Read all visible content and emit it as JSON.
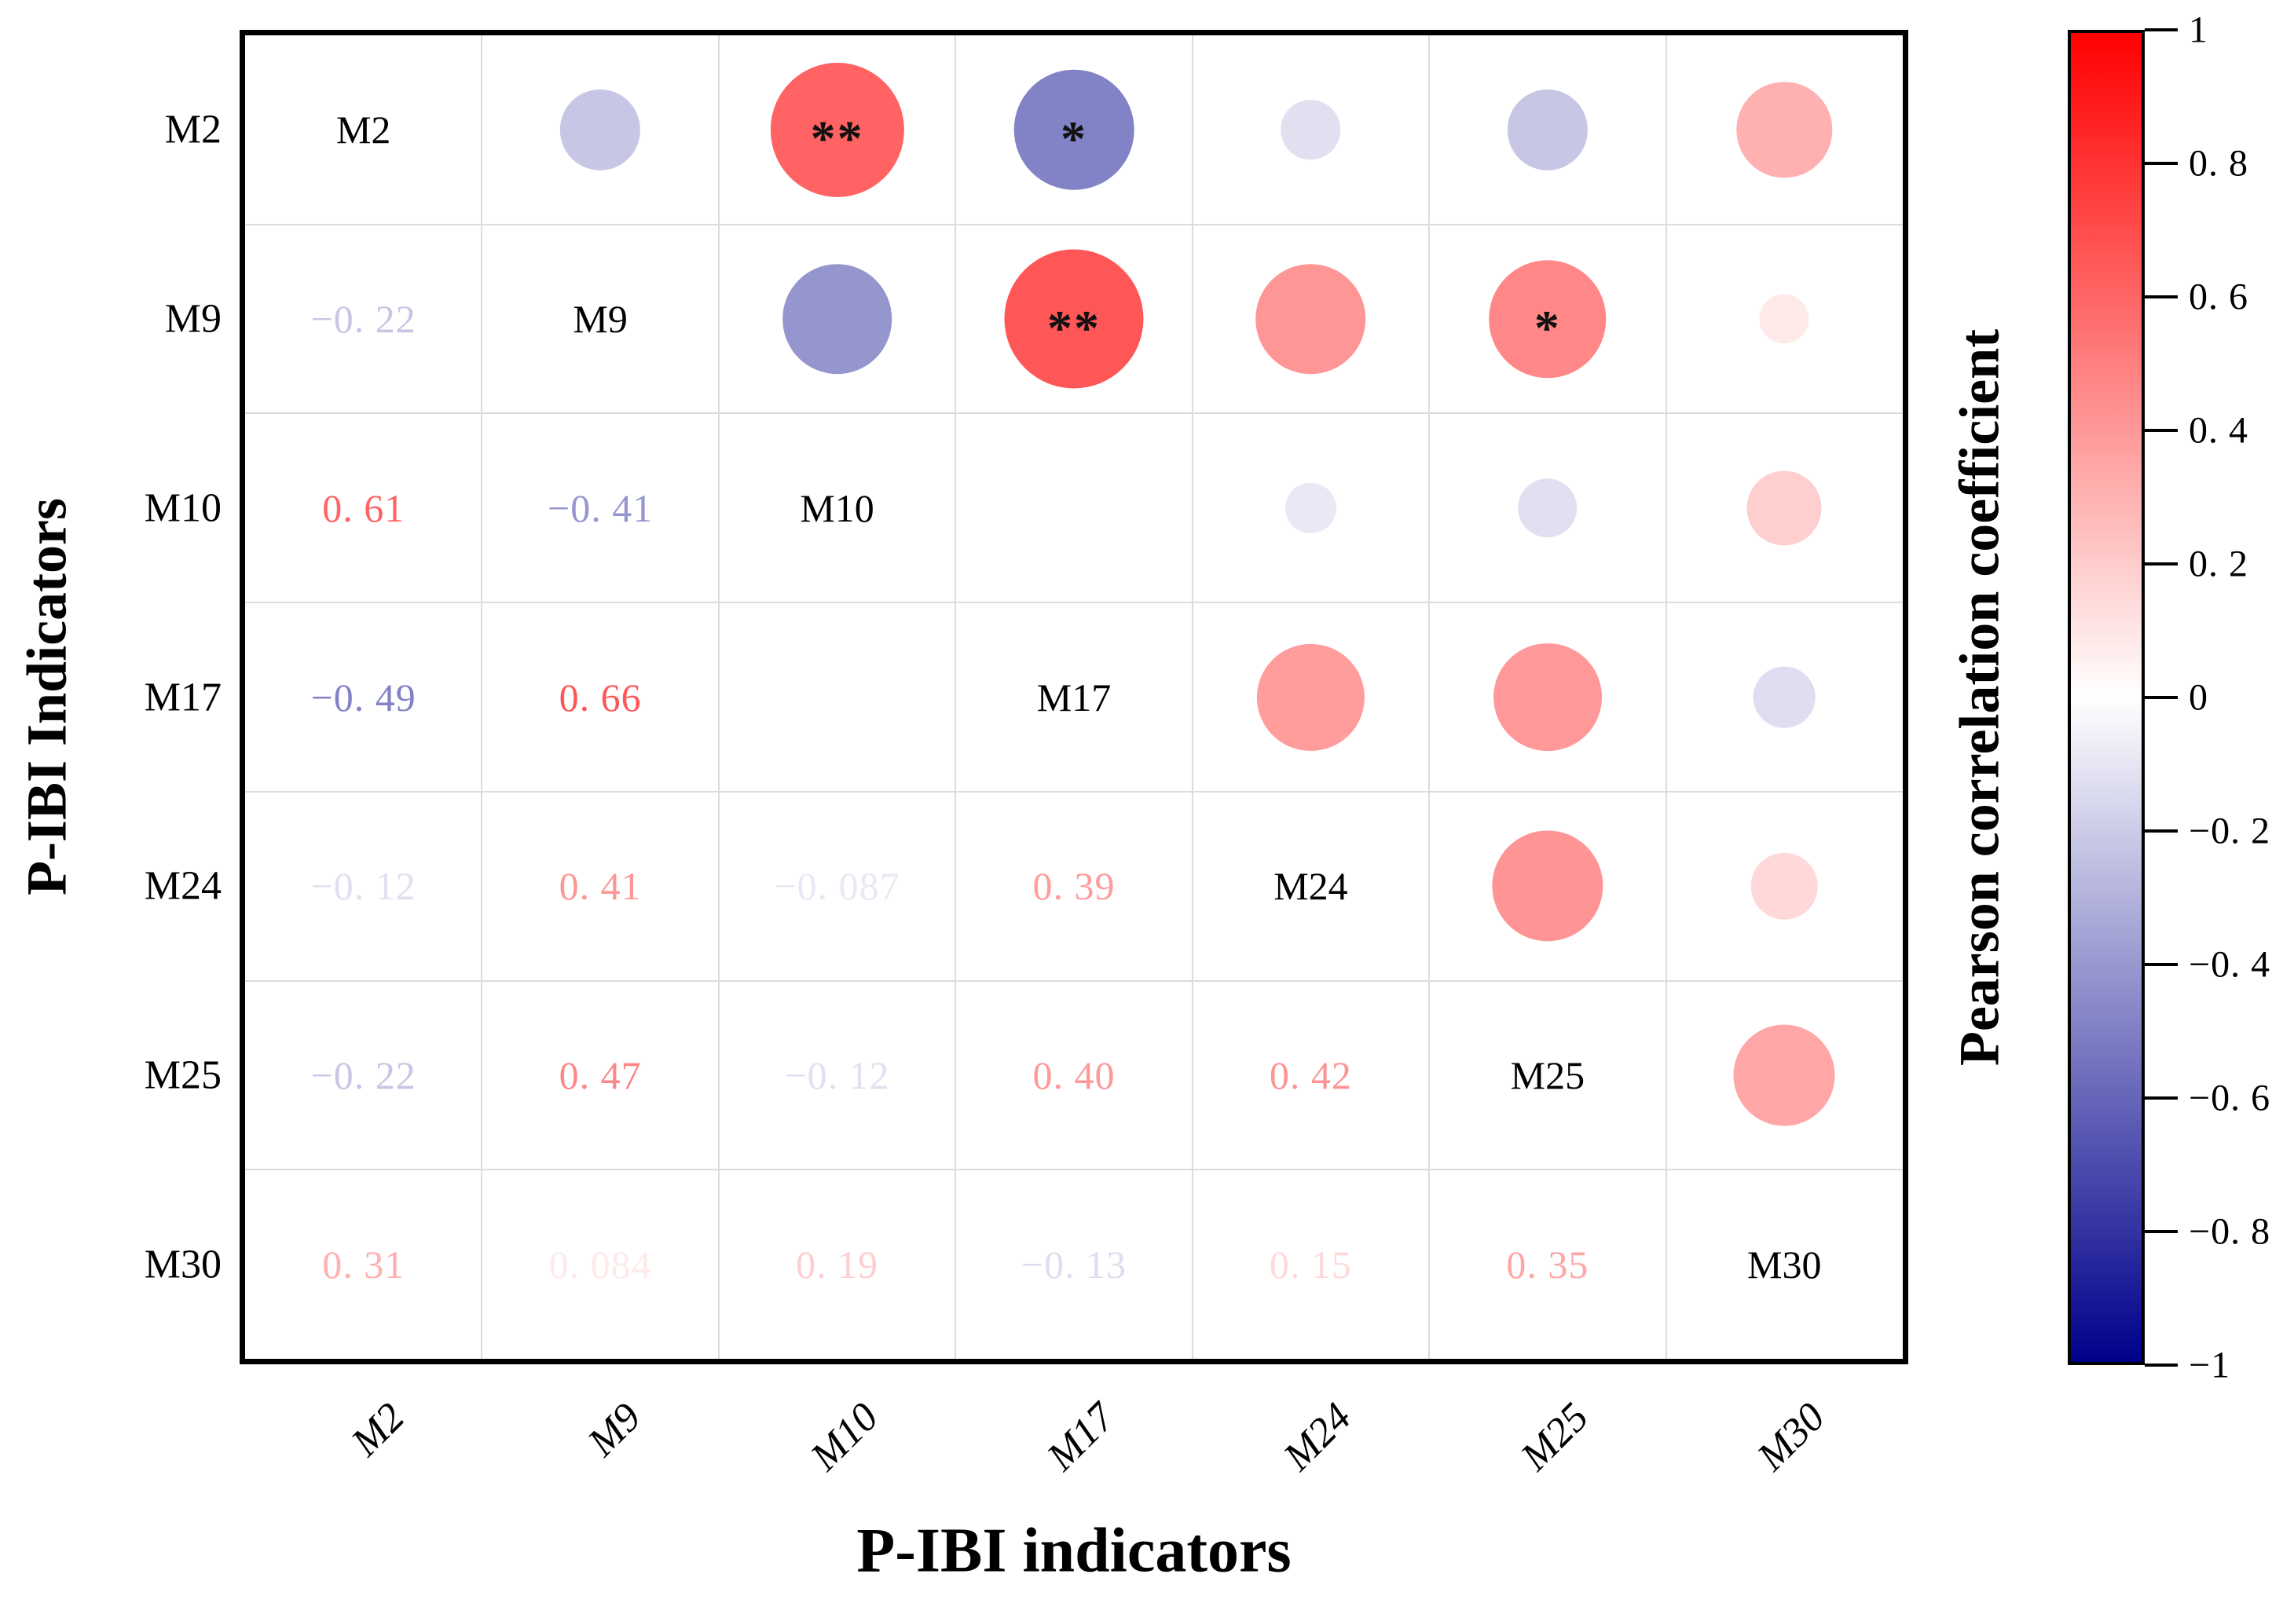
{
  "axes": {
    "x_title": "P-IBI indicators",
    "y_title": "P-IBI Indicators",
    "x_tick_labels": [
      "M2",
      "M9",
      "M10",
      "M17",
      "M24",
      "M25",
      "M30"
    ],
    "y_tick_labels": [
      "M2",
      "M9",
      "M10",
      "M17",
      "M24",
      "M25",
      "M30"
    ]
  },
  "colorbar": {
    "title": "Pearson correlation coefficient",
    "tick_labels": [
      "1",
      "0. 8",
      "0. 6",
      "0. 4",
      "0. 2",
      "0",
      "−0. 2",
      "−0. 4",
      "−0. 6",
      "−0. 8",
      "−1"
    ],
    "tick_values": [
      1,
      0.8,
      0.6,
      0.4,
      0.2,
      0,
      -0.2,
      -0.4,
      -0.6,
      -0.8,
      -1
    ],
    "max_color": "#ff0000",
    "mid_color": "#ffffff",
    "min_color": "#00008b",
    "range": [
      1,
      -1
    ]
  },
  "chart_data": {
    "type": "correlation-matrix",
    "variables": [
      "M2",
      "M9",
      "M10",
      "M17",
      "M24",
      "M25",
      "M30"
    ],
    "diagonal_labels": [
      "M2",
      "M9",
      "M10",
      "M17",
      "M24",
      "M25",
      "M30"
    ],
    "lower_triangle_note": "numeric labels below diagonal, circles above diagonal",
    "pairs": [
      {
        "row": "M9",
        "col": "M2",
        "r": -0.22,
        "label": "−0. 22"
      },
      {
        "row": "M10",
        "col": "M2",
        "r": 0.61,
        "label": "0. 61"
      },
      {
        "row": "M10",
        "col": "M9",
        "r": -0.41,
        "label": "−0. 41"
      },
      {
        "row": "M17",
        "col": "M2",
        "r": -0.49,
        "label": "−0. 49"
      },
      {
        "row": "M17",
        "col": "M9",
        "r": 0.66,
        "label": "0. 66"
      },
      {
        "row": "M24",
        "col": "M2",
        "r": -0.12,
        "label": "−0. 12"
      },
      {
        "row": "M24",
        "col": "M9",
        "r": 0.41,
        "label": "0. 41"
      },
      {
        "row": "M24",
        "col": "M10",
        "r": -0.087,
        "label": "−0. 087"
      },
      {
        "row": "M24",
        "col": "M17",
        "r": 0.39,
        "label": "0. 39"
      },
      {
        "row": "M25",
        "col": "M2",
        "r": -0.22,
        "label": "−0. 22"
      },
      {
        "row": "M25",
        "col": "M9",
        "r": 0.47,
        "label": "0. 47"
      },
      {
        "row": "M25",
        "col": "M10",
        "r": -0.12,
        "label": "−0. 12"
      },
      {
        "row": "M25",
        "col": "M17",
        "r": 0.4,
        "label": "0. 40"
      },
      {
        "row": "M25",
        "col": "M24",
        "r": 0.42,
        "label": "0. 42"
      },
      {
        "row": "M30",
        "col": "M2",
        "r": 0.31,
        "label": "0. 31"
      },
      {
        "row": "M30",
        "col": "M9",
        "r": 0.084,
        "label": "0. 084"
      },
      {
        "row": "M30",
        "col": "M10",
        "r": 0.19,
        "label": "0. 19"
      },
      {
        "row": "M30",
        "col": "M17",
        "r": -0.13,
        "label": "−0. 13"
      },
      {
        "row": "M30",
        "col": "M24",
        "r": 0.15,
        "label": "0. 15"
      },
      {
        "row": "M30",
        "col": "M25",
        "r": 0.35,
        "label": "0. 35"
      }
    ],
    "blank_pairs": [
      {
        "row": "M17",
        "col": "M10"
      }
    ],
    "significance": [
      {
        "a": "M2",
        "b": "M10",
        "stars": "**"
      },
      {
        "a": "M2",
        "b": "M17",
        "stars": "*"
      },
      {
        "a": "M9",
        "b": "M17",
        "stars": "**"
      },
      {
        "a": "M9",
        "b": "M25",
        "stars": "*"
      }
    ]
  }
}
